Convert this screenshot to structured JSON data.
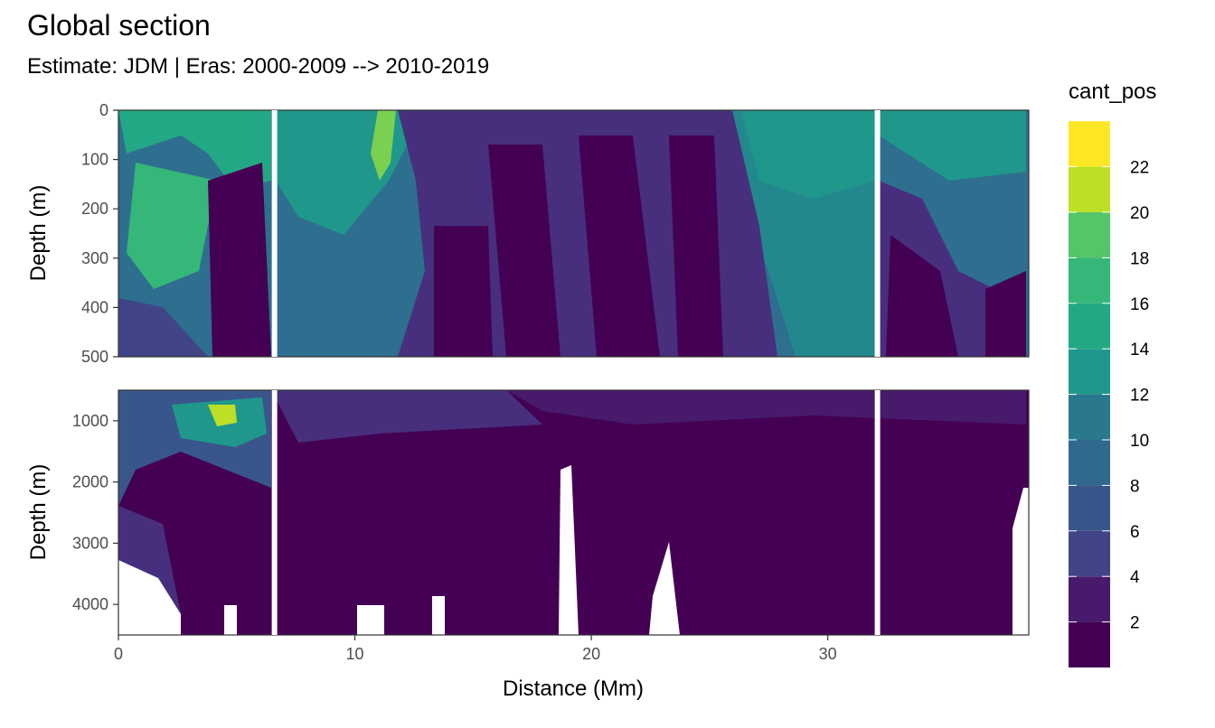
{
  "title": "Global section",
  "subtitle": "Estimate: JDM  | Eras: 2000-2009 --> 2010-2019",
  "chart_data": {
    "type": "heatmap",
    "x_label": "Distance (Mm)",
    "y_label": "Depth (m)",
    "x_range": [
      0,
      38.5
    ],
    "x_ticks": [
      0,
      10,
      20,
      30
    ],
    "panels": [
      {
        "name": "upper",
        "y_range": [
          0,
          500
        ],
        "y_ticks": [
          0,
          100,
          200,
          300,
          400,
          500
        ]
      },
      {
        "name": "lower",
        "y_range": [
          500,
          4500
        ],
        "y_ticks": [
          1000,
          2000,
          3000,
          4000
        ]
      }
    ],
    "legend": {
      "title": "cant_pos",
      "breaks": [
        2,
        4,
        6,
        8,
        10,
        12,
        14,
        16,
        18,
        20,
        22
      ],
      "colors": [
        "#440154",
        "#481a6c",
        "#472f7d",
        "#414487",
        "#39568c",
        "#31688e",
        "#2a788e",
        "#23888e",
        "#1f988b",
        "#22a884",
        "#35b779",
        "#54c568",
        "#7ad151",
        "#bddf26",
        "#fde725"
      ]
    },
    "gaps_x": [
      6.6,
      32.1
    ]
  }
}
